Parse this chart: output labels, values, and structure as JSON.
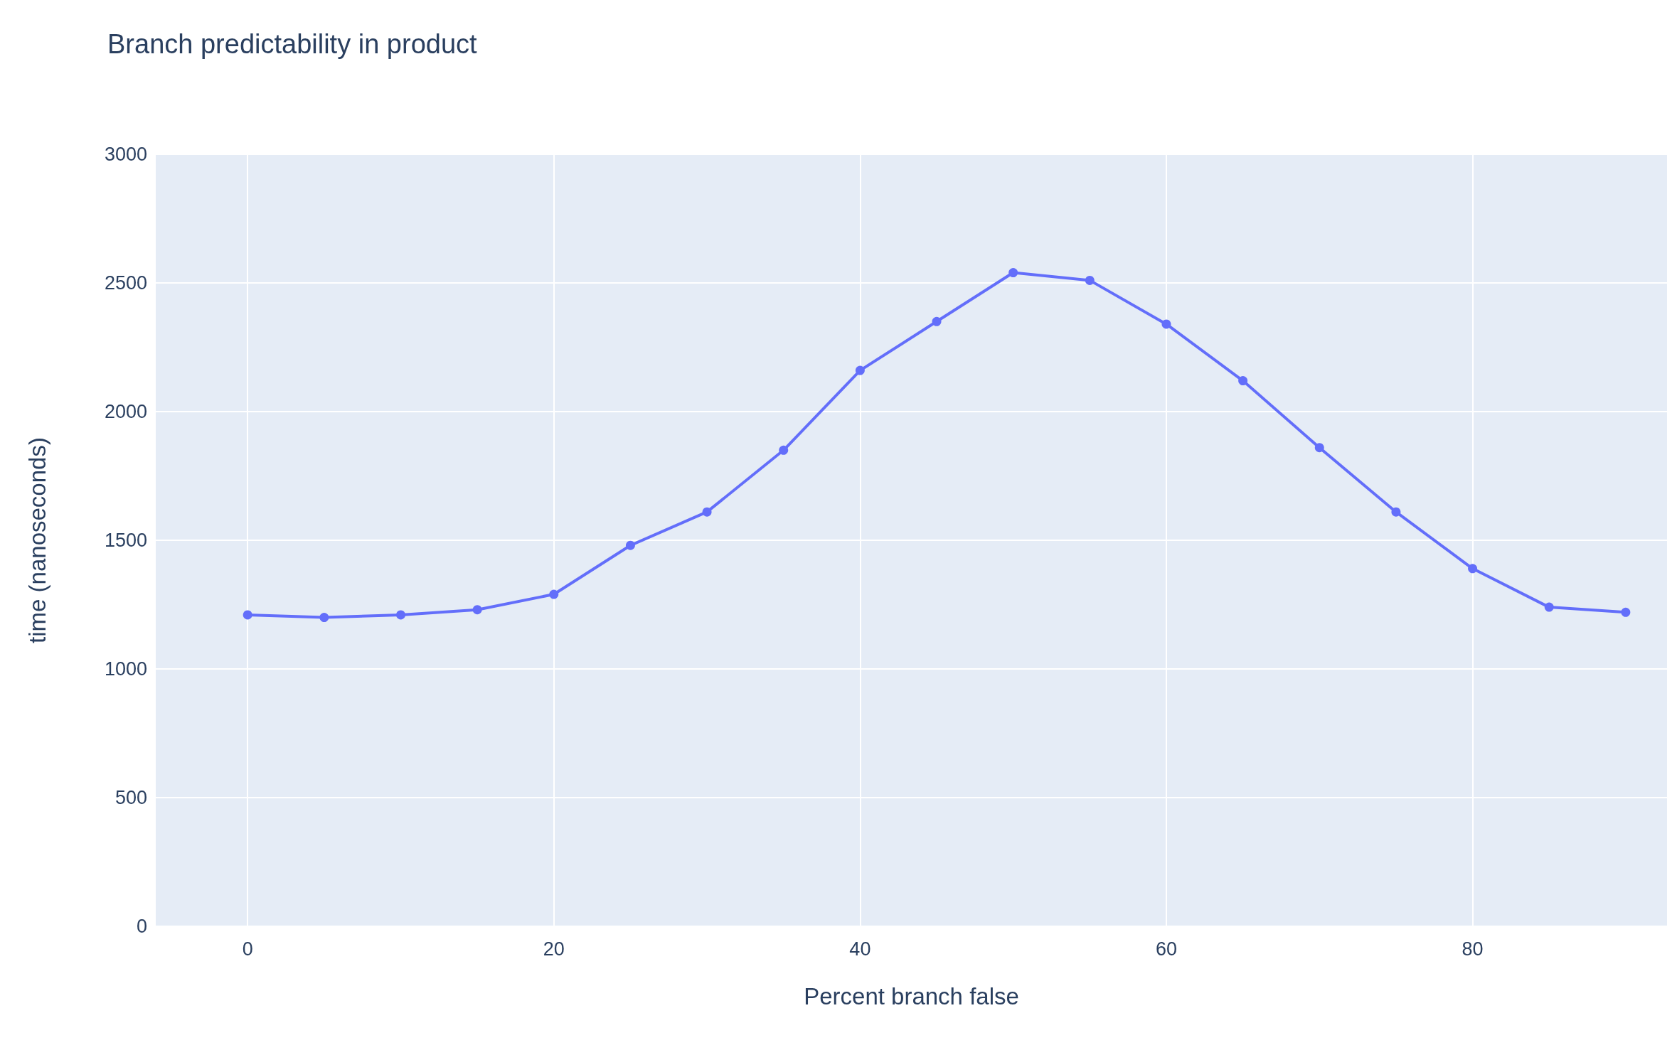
{
  "chart_data": {
    "type": "line",
    "title": "Branch predictability in product",
    "xlabel": "Percent branch false",
    "ylabel": "time (nanoseconds)",
    "x": [
      0,
      5,
      10,
      15,
      20,
      25,
      30,
      35,
      40,
      45,
      50,
      55,
      60,
      65,
      70,
      75,
      80,
      85,
      90
    ],
    "series": [
      {
        "color": "#636efa",
        "values": [
          1210,
          1200,
          1210,
          1230,
          1290,
          1480,
          1610,
          1850,
          2160,
          2350,
          2540,
          2510,
          2340,
          2120,
          1860,
          1610,
          1390,
          1240,
          1220
        ]
      }
    ],
    "xlim": [
      -6,
      92.7
    ],
    "xticks": [
      0,
      20,
      40,
      60,
      80
    ],
    "ylim": [
      0,
      3000
    ],
    "yticks": [
      0,
      500,
      1000,
      1500,
      2000,
      2500,
      3000
    ],
    "grid": true,
    "marker": "circle",
    "line_style": "solid"
  }
}
